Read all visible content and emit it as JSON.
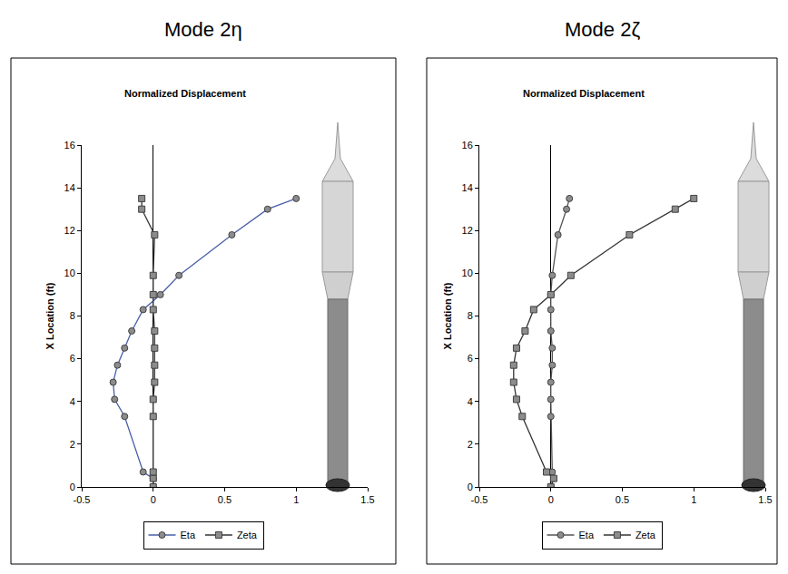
{
  "chart_data": [
    {
      "type": "line",
      "title": "Mode 2η",
      "subtitle": "Normalized Displacement",
      "y_label": "X Location (ft)",
      "xlim": [
        -0.5,
        1.5
      ],
      "xticks": [
        -0.5,
        0,
        0.5,
        1,
        1.5
      ],
      "ylim": [
        0,
        16
      ],
      "yticks": [
        0,
        2,
        4,
        6,
        8,
        10,
        12,
        14,
        16
      ],
      "grid": false,
      "legend": "bottom",
      "series": [
        {
          "name": "Eta",
          "color": "#4a5fa8",
          "marker": "circle",
          "x": [
            0,
            0,
            -0.07,
            -0.2,
            -0.27,
            -0.28,
            -0.25,
            -0.2,
            -0.15,
            -0.07,
            0.05,
            0.18,
            0.55,
            0.8,
            1.0
          ],
          "y": [
            0,
            0.4,
            0.7,
            3.3,
            4.1,
            4.9,
            5.7,
            6.5,
            7.3,
            8.3,
            9.0,
            9.9,
            11.8,
            13.0,
            13.5
          ]
        },
        {
          "name": "Zeta",
          "color": "#333333",
          "marker": "square",
          "x": [
            0,
            0,
            0,
            0,
            0,
            0.01,
            0.01,
            0.01,
            0.01,
            0,
            0,
            0,
            0.01,
            -0.08,
            -0.08
          ],
          "y": [
            0,
            0.4,
            0.7,
            3.3,
            4.1,
            4.9,
            5.7,
            6.5,
            7.3,
            8.3,
            9.0,
            9.9,
            11.8,
            13.0,
            13.5
          ]
        }
      ]
    },
    {
      "type": "line",
      "title": "Mode 2ζ",
      "subtitle": "Normalized Displacement",
      "y_label": "X Location (ft)",
      "xlim": [
        -0.5,
        1.5
      ],
      "xticks": [
        -0.5,
        0,
        0.5,
        1,
        1.5
      ],
      "ylim": [
        0,
        16
      ],
      "yticks": [
        0,
        2,
        4,
        6,
        8,
        10,
        12,
        14,
        16
      ],
      "grid": false,
      "legend": "bottom",
      "series": [
        {
          "name": "Eta",
          "color": "#555555",
          "marker": "circle",
          "x": [
            0,
            0.02,
            0.01,
            0,
            0,
            0,
            0.01,
            0.01,
            0,
            0,
            0,
            0.01,
            0.05,
            0.11,
            0.13
          ],
          "y": [
            0,
            0.4,
            0.7,
            3.3,
            4.1,
            4.9,
            5.7,
            6.5,
            7.3,
            8.3,
            9.0,
            9.9,
            11.8,
            13.0,
            13.5
          ]
        },
        {
          "name": "Zeta",
          "color": "#333333",
          "marker": "square",
          "x": [
            0,
            0.02,
            -0.03,
            -0.2,
            -0.24,
            -0.26,
            -0.26,
            -0.24,
            -0.18,
            -0.12,
            0,
            0.14,
            0.55,
            0.87,
            1.0
          ],
          "y": [
            0,
            0.4,
            0.7,
            3.3,
            4.1,
            4.9,
            5.7,
            6.5,
            7.3,
            8.3,
            9.0,
            9.9,
            11.8,
            13.0,
            13.5
          ]
        }
      ]
    }
  ]
}
